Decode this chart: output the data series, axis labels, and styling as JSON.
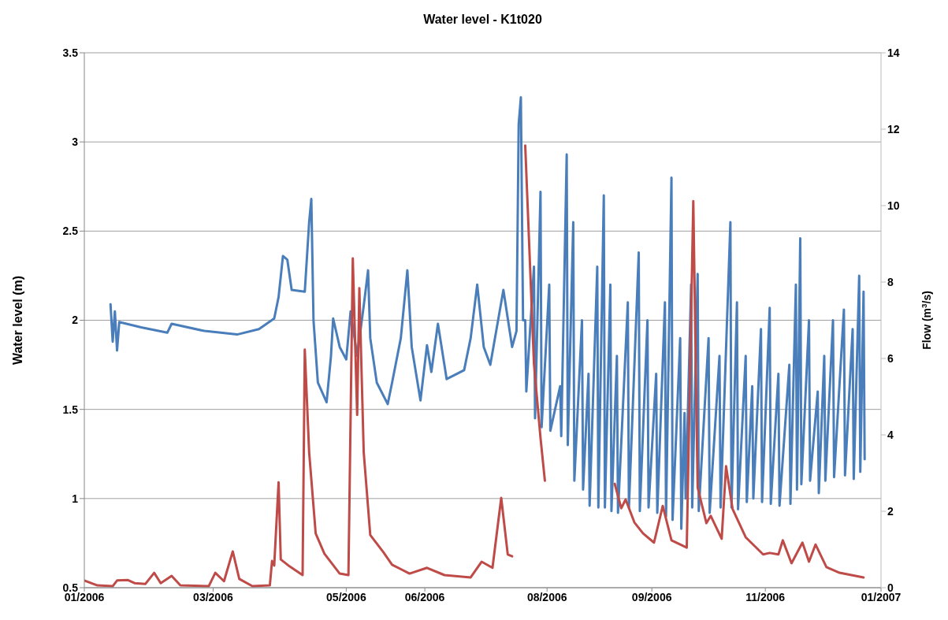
{
  "chart_data": {
    "type": "line",
    "title": "Water level - K1t020",
    "ylabel": "Water level (m)",
    "y2label": "Flow (m$^{3}$/s)",
    "xlim": [
      "2006-01-01",
      "2007-01-01"
    ],
    "xticks": [
      {
        "value": "2006-01-01",
        "label": "01/2006"
      },
      {
        "value": "2006-03-01",
        "label": "03/2006"
      },
      {
        "value": "2006-05-01",
        "label": "05/2006"
      },
      {
        "value": "2006-06-06",
        "label": "06/2006"
      },
      {
        "value": "2006-08-01",
        "label": "08/2006"
      },
      {
        "value": "2006-09-18",
        "label": "09/2006"
      },
      {
        "value": "2006-11-09",
        "label": "11/2006"
      },
      {
        "value": "2007-01-01",
        "label": "01/2007"
      }
    ],
    "ylim": [
      0.5,
      3.5
    ],
    "yticks": [
      0.5,
      1,
      1.5,
      2,
      2.5,
      3,
      3.5
    ],
    "y2lim": [
      0,
      14
    ],
    "y2ticks": [
      0,
      2,
      4,
      6,
      8,
      10,
      12,
      14
    ],
    "grid": "y",
    "marker": "none",
    "line_style": "solid",
    "series": [
      {
        "color": "#4a7ebb",
        "x": [
          "2006-01-13",
          "2006-01-14",
          "2006-01-15",
          "2006-01-16",
          "2006-01-17",
          "2006-01-27",
          "2006-02-08",
          "2006-02-10",
          "2006-02-25",
          "2006-03-12",
          "2006-03-22",
          "2006-03-29",
          "2006-03-31",
          "2006-04-02",
          "2006-04-04",
          "2006-04-06",
          "2006-04-12",
          "2006-04-14",
          "2006-04-15",
          "2006-04-16",
          "2006-04-18",
          "2006-04-22",
          "2006-04-24",
          "2006-04-25",
          "2006-04-28",
          "2006-05-01",
          "2006-05-03",
          "2006-05-06",
          "2006-05-09",
          "2006-05-11",
          "2006-05-12",
          "2006-05-15",
          "2006-05-20",
          "2006-05-22",
          "2006-05-26",
          "2006-05-29",
          "2006-05-31",
          "2006-06-04",
          "2006-06-07",
          "2006-06-09",
          "2006-06-12",
          "2006-06-16",
          "2006-06-24",
          "2006-06-27",
          "2006-06-30",
          "2006-07-03",
          "2006-07-06",
          "2006-07-12",
          "2006-07-16",
          "2006-07-18",
          "2006-07-19",
          "2006-07-20",
          "2006-07-21",
          "2006-07-22T00:00",
          "2006-07-22T12:00",
          "2006-07-26T00:00",
          "2006-07-26T12:00",
          "2006-07-29T00:00",
          "2006-07-29T12:00",
          "2006-08-02T00:00",
          "2006-08-02T12:00",
          "2006-08-07T00:00",
          "2006-08-07T12:00",
          "2006-08-10T00:00",
          "2006-08-10T12:00",
          "2006-08-13T00:00",
          "2006-08-13T12:00",
          "2006-08-17T00:00",
          "2006-08-17T12:00",
          "2006-08-20T00:00",
          "2006-08-20T12:00",
          "2006-08-24T00:00",
          "2006-08-24T12:00",
          "2006-08-27T00:00",
          "2006-08-27T12:00",
          "2006-08-30T00:00",
          "2006-08-30T12:00",
          "2006-09-02T00:00",
          "2006-09-02T12:00",
          "2006-09-07T00:00",
          "2006-09-07T12:00",
          "2006-09-12T00:00",
          "2006-09-12T12:00",
          "2006-09-16T00:00",
          "2006-09-16T12:00",
          "2006-09-20T00:00",
          "2006-09-20T12:00",
          "2006-09-24T00:00",
          "2006-09-24T12:00",
          "2006-09-27T00:00",
          "2006-09-27T12:00",
          "2006-10-01T00:00",
          "2006-10-01T12:00",
          "2006-10-03T00:00",
          "2006-10-03T12:00",
          "2006-10-06T00:00",
          "2006-10-06T12:00",
          "2006-10-09T00:00",
          "2006-10-09T12:00",
          "2006-10-14T00:00",
          "2006-10-14T12:00",
          "2006-10-19T00:00",
          "2006-10-19T12:00",
          "2006-10-24T00:00",
          "2006-10-24T12:00",
          "2006-10-27T00:00",
          "2006-10-27T12:00",
          "2006-10-31T00:00",
          "2006-10-31T12:00",
          "2006-11-03T00:00",
          "2006-11-03T12:00",
          "2006-11-07T00:00",
          "2006-11-07T12:00",
          "2006-11-11T00:00",
          "2006-11-11T12:00",
          "2006-11-15T00:00",
          "2006-11-15T12:00",
          "2006-11-20T00:00",
          "2006-11-20T12:00",
          "2006-11-23T00:00",
          "2006-11-23T12:00",
          "2006-11-25T00:00",
          "2006-11-25T12:00",
          "2006-11-29T00:00",
          "2006-11-29T12:00",
          "2006-12-03T00:00",
          "2006-12-03T12:00",
          "2006-12-06T00:00",
          "2006-12-06T12:00",
          "2006-12-10T00:00",
          "2006-12-10T12:00",
          "2006-12-15T00:00",
          "2006-12-15T12:00",
          "2006-12-19T00:00",
          "2006-12-19T12:00",
          "2006-12-22T00:00",
          "2006-12-22T12:00",
          "2006-12-24T00:00",
          "2006-12-24T12:00"
        ],
        "values": [
          2.09,
          1.88,
          2.05,
          1.83,
          1.99,
          1.96,
          1.93,
          1.98,
          1.94,
          1.92,
          1.95,
          2.01,
          2.13,
          2.36,
          2.34,
          2.17,
          2.16,
          2.55,
          2.68,
          2.0,
          1.65,
          1.54,
          1.8,
          2.01,
          1.85,
          1.78,
          2.05,
          1.8,
          2.08,
          2.28,
          1.9,
          1.65,
          1.53,
          1.65,
          1.9,
          2.28,
          1.85,
          1.55,
          1.86,
          1.71,
          1.98,
          1.67,
          1.72,
          1.9,
          2.2,
          1.85,
          1.75,
          2.17,
          1.85,
          1.94,
          3.1,
          3.25,
          2.0,
          2.0,
          1.6,
          2.3,
          1.45,
          2.72,
          1.4,
          2.2,
          1.38,
          1.63,
          1.35,
          2.93,
          1.3,
          2.55,
          1.1,
          2.0,
          1.05,
          1.7,
          0.96,
          2.3,
          0.95,
          2.7,
          0.95,
          2.2,
          0.93,
          1.8,
          0.92,
          2.1,
          0.95,
          2.38,
          0.93,
          2.0,
          0.95,
          1.7,
          0.92,
          2.1,
          0.9,
          2.8,
          0.88,
          1.9,
          0.83,
          1.48,
          1.0,
          2.2,
          0.95,
          2.26,
          0.93,
          1.9,
          0.92,
          1.8,
          0.95,
          2.55,
          0.95,
          2.1,
          0.94,
          1.8,
          0.98,
          1.63,
          1.0,
          1.95,
          0.98,
          2.07,
          0.97,
          1.7,
          0.96,
          1.75,
          0.97,
          2.2,
          1.05,
          2.46,
          1.08,
          2.0,
          1.1,
          1.6,
          1.03,
          1.8,
          1.1,
          2.0,
          1.12,
          2.06,
          1.13,
          1.95,
          1.11,
          2.25,
          1.15,
          2.16,
          1.22
        ]
      },
      {
        "color": "#be4b48",
        "axis": "y2",
        "x": [
          "2006-01-01",
          "2006-01-07",
          "2006-01-14",
          "2006-01-16",
          "2006-01-21",
          "2006-01-24",
          "2006-01-29",
          "2006-02-02",
          "2006-02-05",
          "2006-02-10",
          "2006-02-14",
          "2006-02-27",
          "2006-03-02",
          "2006-03-06",
          "2006-03-10",
          "2006-03-13",
          "2006-03-19",
          "2006-03-27",
          "2006-03-28",
          "2006-03-29",
          "2006-03-31",
          "2006-04-01",
          "2006-04-05",
          "2006-04-11",
          "2006-04-12",
          "2006-04-14",
          "2006-04-17",
          "2006-04-21",
          "2006-04-28",
          "2006-05-02",
          "2006-05-04",
          "2006-05-06",
          "2006-05-07",
          "2006-05-09",
          "2006-05-12",
          "2006-05-18",
          "2006-05-22",
          "2006-05-30",
          "2006-06-07",
          "2006-06-15",
          "2006-06-27",
          "2006-07-02",
          "2006-07-07",
          "2006-07-11",
          "2006-07-14",
          "2006-07-16",
          "2006-07-19",
          "2006-07-22",
          "2006-07-26",
          "2006-07-29",
          "2006-07-31",
          "2006-08-16",
          "2006-09-01",
          "2006-09-04",
          "2006-09-06",
          "2006-09-10",
          "2006-09-14",
          "2006-09-19",
          "2006-09-23",
          "2006-09-27",
          "2006-10-01",
          "2006-10-04",
          "2006-10-07",
          "2006-10-09",
          "2006-10-13",
          "2006-10-15",
          "2006-10-20",
          "2006-10-22",
          "2006-10-25",
          "2006-10-31",
          "2006-11-08",
          "2006-11-11",
          "2006-11-15",
          "2006-11-17",
          "2006-11-21",
          "2006-11-26",
          "2006-11-29",
          "2006-12-02",
          "2006-12-07",
          "2006-12-13",
          "2006-12-24"
        ],
        "values": [
          0.19,
          0.06,
          0.04,
          0.19,
          0.2,
          0.12,
          0.1,
          0.39,
          0.12,
          0.31,
          0.06,
          0.04,
          0.39,
          0.17,
          0.95,
          0.23,
          0.04,
          0.06,
          0.7,
          0.58,
          2.76,
          0.74,
          0.56,
          0.33,
          6.23,
          3.55,
          1.42,
          0.89,
          0.37,
          0.33,
          8.62,
          4.52,
          7.84,
          3.55,
          1.38,
          0.93,
          0.6,
          0.37,
          0.52,
          0.33,
          0.27,
          0.68,
          0.52,
          2.35,
          0.87,
          0.82,
          null,
          11.57,
          5.86,
          3.92,
          2.8,
          null,
          2.72,
          2.08,
          2.31,
          1.71,
          1.42,
          1.18,
          2.14,
          1.24,
          1.13,
          1.05,
          10.12,
          2.62,
          1.69,
          1.88,
          1.28,
          3.18,
          2.06,
          1.32,
          0.87,
          0.91,
          0.87,
          1.24,
          0.64,
          1.18,
          0.68,
          1.13,
          0.54,
          0.39,
          0.27
        ]
      }
    ]
  }
}
